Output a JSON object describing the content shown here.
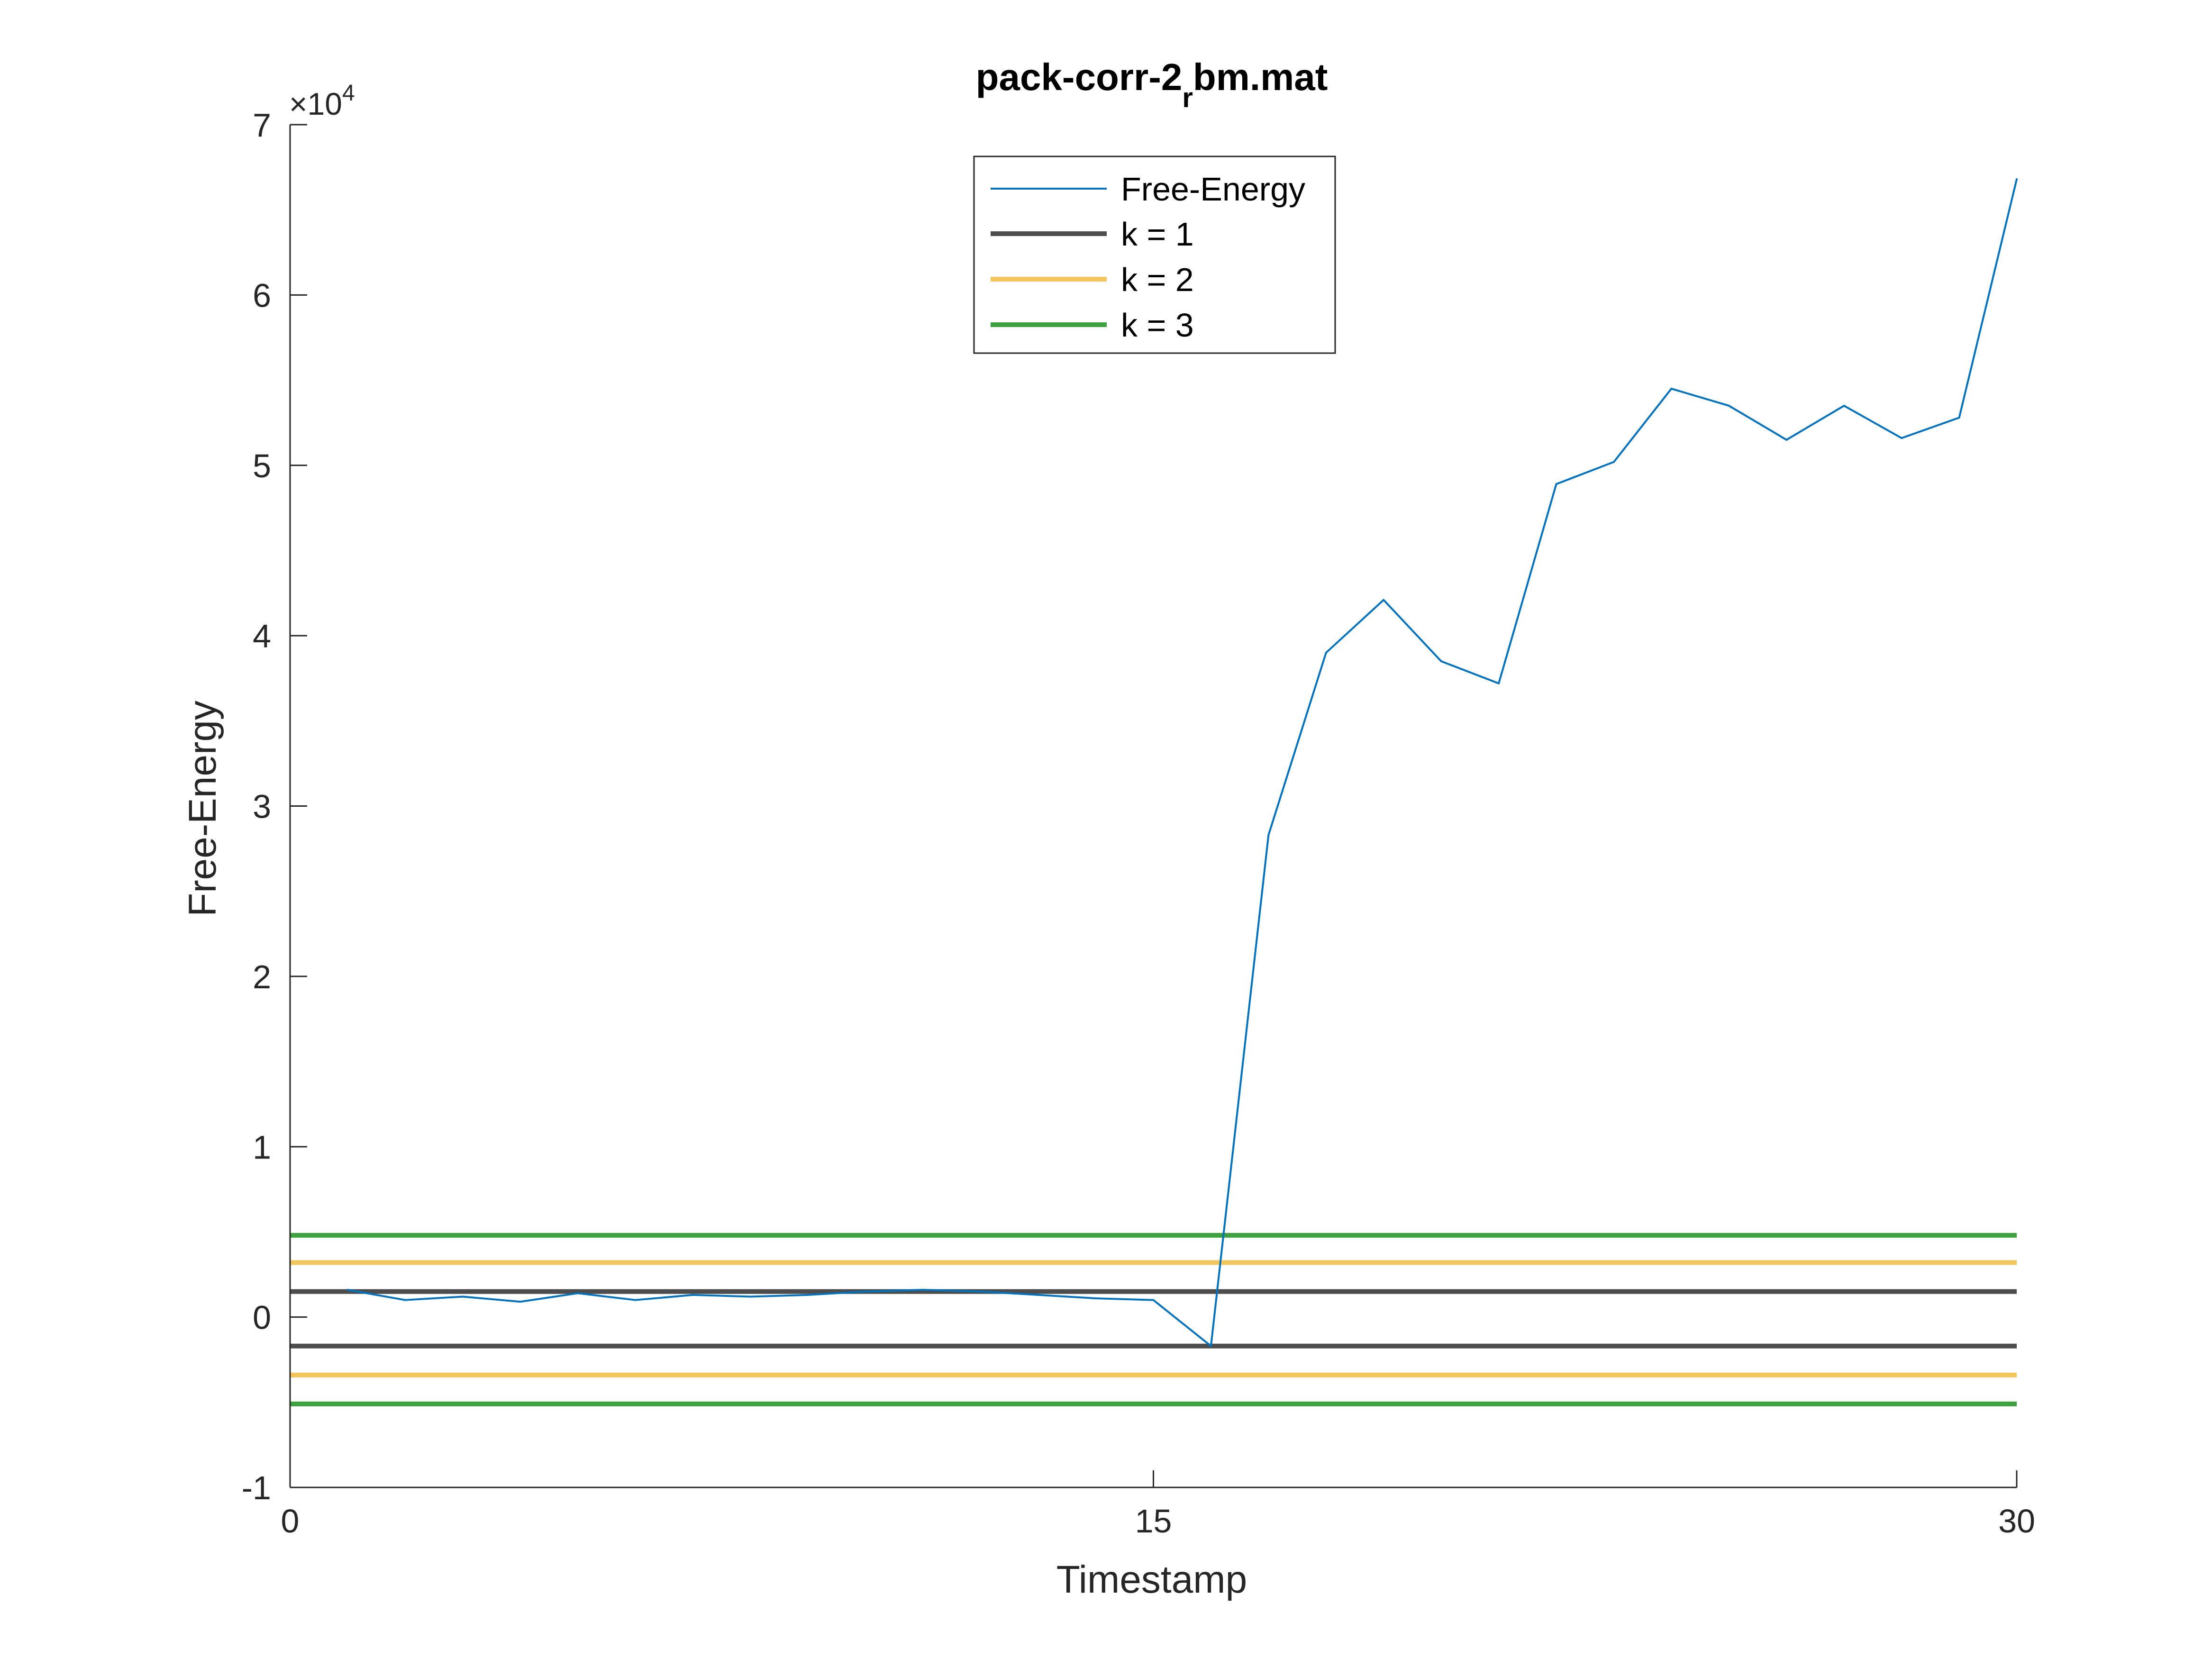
{
  "chart_data": {
    "type": "line",
    "title": {
      "main": "pack-corr-2",
      "subscript": "r",
      "rest": "bm.mat"
    },
    "xlabel": "Timestamp",
    "ylabel": "Free-Energy",
    "y_multiplier": {
      "base": "×10",
      "exponent": "4"
    },
    "xlim": [
      0,
      30
    ],
    "ylim": [
      -10000,
      70000
    ],
    "x_ticks": [
      {
        "value": 0,
        "label": "0"
      },
      {
        "value": 15,
        "label": "15"
      },
      {
        "value": 30,
        "label": "30"
      }
    ],
    "y_ticks": [
      {
        "value": -10000,
        "label": "-1"
      },
      {
        "value": 0,
        "label": "0"
      },
      {
        "value": 10000,
        "label": "1"
      },
      {
        "value": 20000,
        "label": "2"
      },
      {
        "value": 30000,
        "label": "3"
      },
      {
        "value": 40000,
        "label": "4"
      },
      {
        "value": 50000,
        "label": "5"
      },
      {
        "value": 60000,
        "label": "6"
      },
      {
        "value": 70000,
        "label": "7"
      }
    ],
    "grid": false,
    "legend_position": "top-center",
    "series": [
      {
        "name": "Free-Energy",
        "color": "#0072bd",
        "x": [
          1,
          2,
          3,
          4,
          5,
          6,
          7,
          8,
          9,
          10,
          11,
          12,
          13,
          14,
          15,
          16,
          17,
          18,
          19,
          20,
          21,
          22,
          23,
          24,
          25,
          26,
          27,
          28,
          29,
          30
        ],
        "y": [
          1600,
          1000,
          1200,
          900,
          1400,
          1000,
          1300,
          1200,
          1300,
          1500,
          1600,
          1500,
          1300,
          1100,
          1000,
          -1700,
          28300,
          39000,
          42100,
          38500,
          37200,
          48900,
          50200,
          54500,
          53500,
          51500,
          53500,
          51600,
          52800,
          66800
        ]
      }
    ],
    "reference_lines": [
      {
        "legend": "k = 1",
        "color": "#4d4d4d",
        "values": [
          1500,
          -1700
        ]
      },
      {
        "legend": "k = 2",
        "color": "#f2c65c",
        "values": [
          3200,
          -3400
        ]
      },
      {
        "legend": "k = 3",
        "color": "#3da13d",
        "values": [
          4800,
          -5100
        ]
      }
    ]
  }
}
